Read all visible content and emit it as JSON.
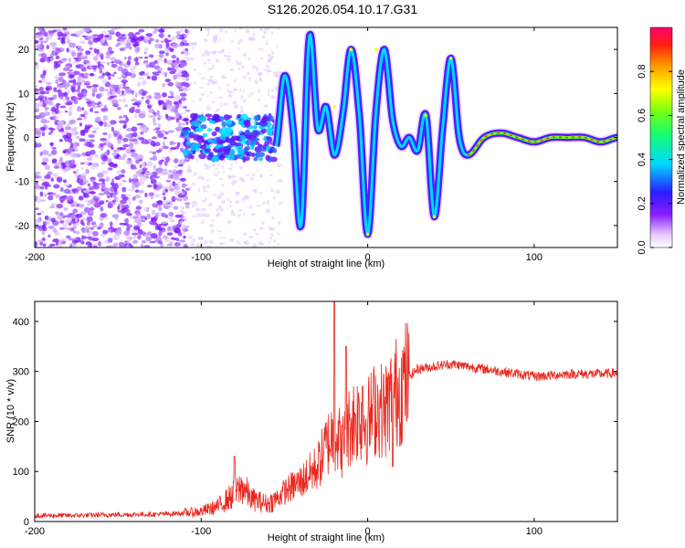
{
  "title": "S126.2026.054.10.17.G31",
  "chart_data": [
    {
      "type": "heatmap",
      "xlabel": "Height of straight line (km)",
      "ylabel": "Frequency (Hz)",
      "xlim": [
        -200,
        150
      ],
      "ylim": [
        -25,
        25
      ],
      "xticks": [
        -200,
        -100,
        0,
        100
      ],
      "xtick_labels": [
        "-200",
        "-100",
        "0",
        "100"
      ],
      "yticks": [
        -20,
        -10,
        0,
        10,
        20
      ],
      "ytick_labels": [
        "-20",
        "-10",
        "0",
        "10",
        "20"
      ],
      "colorbar": {
        "label": "Normalized spectral amplitude",
        "range": [
          0,
          1
        ],
        "ticks": [
          0.0,
          0.2,
          0.4,
          0.6,
          0.8
        ],
        "tick_labels": [
          "0.0",
          "0.2",
          "0.4",
          "0.6",
          "0.8"
        ]
      },
      "ridge": {
        "description": "dominant frequency trace vs height",
        "x": [
          -55,
          -50,
          -45,
          -40,
          -35,
          -30,
          -25,
          -20,
          -15,
          -10,
          -5,
          0,
          5,
          10,
          15,
          20,
          25,
          30,
          35,
          40,
          45,
          50,
          55,
          60,
          70,
          80,
          90,
          100,
          110,
          120,
          130,
          140,
          150
        ],
        "y": [
          -2,
          14,
          3,
          -20,
          23,
          2,
          7,
          -4,
          5,
          20,
          5,
          -22,
          6,
          20,
          4,
          -2,
          0,
          -3,
          5,
          -18,
          2,
          18,
          0,
          -4,
          0,
          1,
          0,
          -1,
          0,
          0,
          0,
          -1,
          0
        ]
      }
    },
    {
      "type": "line",
      "xlabel": "Height of straight line (km)",
      "ylabel": "SNR (10 * v/v)",
      "xlim": [
        -200,
        150
      ],
      "ylim": [
        0,
        440
      ],
      "xticks": [
        -200,
        -100,
        0,
        100
      ],
      "xtick_labels": [
        "-200",
        "-100",
        "0",
        "100"
      ],
      "yticks": [
        0,
        100,
        200,
        300,
        400
      ],
      "ytick_labels": [
        "0",
        "100",
        "200",
        "300",
        "400"
      ],
      "color": "#e8281f",
      "series": [
        {
          "name": "SNR",
          "x": [
            -200,
            -180,
            -160,
            -140,
            -120,
            -110,
            -100,
            -90,
            -80,
            -75,
            -70,
            -60,
            -55,
            -50,
            -40,
            -30,
            -25,
            -20,
            -15,
            -10,
            -5,
            0,
            5,
            10,
            15,
            20,
            25,
            30,
            40,
            50,
            60,
            70,
            80,
            90,
            100,
            110,
            120,
            130,
            140,
            150
          ],
          "values": [
            12,
            12,
            13,
            14,
            15,
            17,
            20,
            30,
            55,
            70,
            45,
            35,
            45,
            60,
            80,
            110,
            150,
            180,
            150,
            200,
            210,
            200,
            230,
            220,
            250,
            270,
            290,
            305,
            310,
            315,
            310,
            305,
            300,
            295,
            290,
            292,
            295,
            295,
            295,
            297
          ],
          "spikes": [
            {
              "x": -80,
              "value": 130
            },
            {
              "x": -20,
              "value": 440
            },
            {
              "x": -13,
              "value": 350
            },
            {
              "x": -3,
              "value": 270
            },
            {
              "x": 15,
              "value": 110
            }
          ]
        }
      ]
    }
  ]
}
